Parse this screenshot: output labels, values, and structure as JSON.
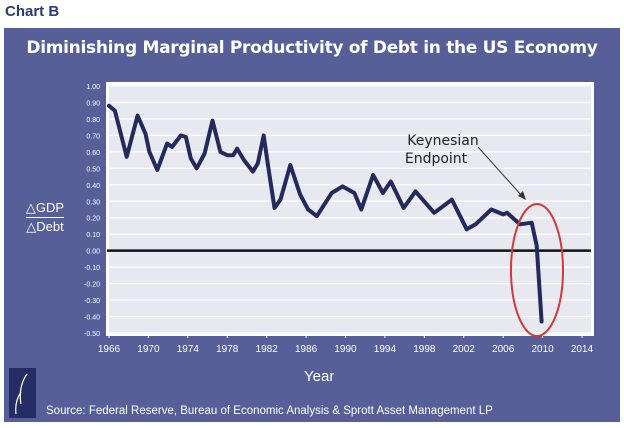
{
  "page_label": "Chart B",
  "colors": {
    "panel": "#565f97",
    "plot_bg": "#e8e9f0",
    "line": "#232a5c",
    "ellipse": "#d03a3a"
  },
  "chart_data": {
    "type": "line",
    "title": "Diminishing Marginal Productivity of Debt in the US Economy",
    "xlabel": "Year",
    "ylabel_top": "△GDP",
    "ylabel_bottom": "△Debt",
    "xlim": [
      1966,
      2014
    ],
    "ylim": [
      -0.5,
      1.0
    ],
    "grid": true,
    "x_ticks": [
      "1966",
      "1970",
      "1974",
      "1978",
      "1982",
      "1986",
      "1990",
      "1994",
      "1998",
      "2002",
      "2006",
      "2010",
      "2014"
    ],
    "y_ticks": [
      "1.00",
      "0.90",
      "0.80",
      "0.70",
      "0.60",
      "0.50",
      "0.40",
      "0.30",
      "0.20",
      "0.10",
      "0.00",
      "-0.10",
      "-0.20",
      "-0.30",
      "-0.40",
      "-0.50"
    ],
    "series": [
      {
        "x": [
          1966,
          1966.6,
          1967.8,
          1968.9,
          1969.7,
          1970.1,
          1970.9,
          1971.9,
          1972.4,
          1973.3,
          1973.8,
          1974.3,
          1974.9,
          1975.7,
          1976.5,
          1977.3,
          1978,
          1978.6,
          1979,
          1979.7,
          1980.6,
          1981.1,
          1981.7,
          1982.1,
          1982.8,
          1983.4,
          1984.4,
          1985.4,
          1986.2,
          1987.1,
          1988.6,
          1989.7,
          1990.9,
          1991.6,
          1992.8,
          1993.8,
          1994.6,
          1995.9,
          1997.1,
          1999,
          2000.8,
          2002.3,
          2003.2,
          2004.8,
          2006,
          2006.4,
          2007.7,
          2008.9,
          2009.4,
          2009.9
        ],
        "y": [
          0.88,
          0.85,
          0.57,
          0.82,
          0.71,
          0.6,
          0.49,
          0.65,
          0.63,
          0.7,
          0.69,
          0.56,
          0.5,
          0.59,
          0.79,
          0.6,
          0.58,
          0.58,
          0.62,
          0.55,
          0.48,
          0.53,
          0.7,
          0.53,
          0.26,
          0.31,
          0.52,
          0.34,
          0.25,
          0.21,
          0.35,
          0.39,
          0.35,
          0.25,
          0.46,
          0.35,
          0.42,
          0.26,
          0.36,
          0.23,
          0.31,
          0.13,
          0.16,
          0.25,
          0.22,
          0.23,
          0.16,
          0.17,
          0.03,
          -0.43
        ]
      }
    ],
    "annotation": {
      "line1": "Keynesian",
      "line2": "Endpoint"
    }
  },
  "source": "Source: Federal Reserve, Bureau of Economic Analysis & Sprott Asset Management LP"
}
